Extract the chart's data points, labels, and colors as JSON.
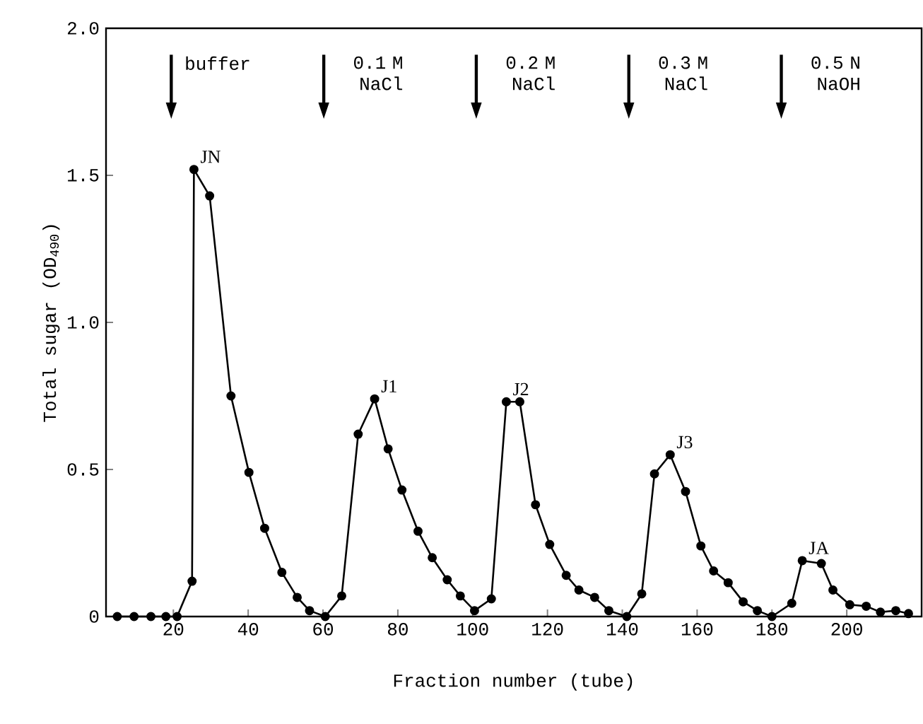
{
  "chart_data": {
    "type": "line",
    "xlabel": "Fraction number (tube)",
    "ylabel": "Total sugar (OD$_{490}$)",
    "x": [
      5,
      9.5,
      14,
      18,
      21,
      25,
      25.5,
      29.7,
      35.4,
      40.2,
      44.4,
      49,
      53.1,
      56.4,
      60.6,
      65,
      69.4,
      73.8,
      77.4,
      81.1,
      85.4,
      89.2,
      93.2,
      96.7,
      100.5,
      105,
      109,
      112.6,
      116.8,
      120.6,
      125,
      128.4,
      132.6,
      136.4,
      141.2,
      145.2,
      148.6,
      152.8,
      156.9,
      161,
      164.4,
      168.3,
      172.3,
      176.1,
      180,
      185.3,
      188.1,
      193.2,
      196.3,
      200.8,
      205.2,
      209,
      213.1,
      216.5
    ],
    "series": [
      {
        "color": "#000000",
        "values": [
          0,
          0,
          0,
          0,
          0,
          0.12,
          1.52,
          1.43,
          0.75,
          0.49,
          0.3,
          0.15,
          0.065,
          0.02,
          0,
          0.07,
          0.62,
          0.74,
          0.57,
          0.43,
          0.29,
          0.2,
          0.125,
          0.07,
          0.02,
          0.06,
          0.73,
          0.73,
          0.38,
          0.245,
          0.14,
          0.09,
          0.065,
          0.02,
          0,
          0.077,
          0.485,
          0.55,
          0.425,
          0.24,
          0.155,
          0.115,
          0.05,
          0.02,
          0,
          0.045,
          0.19,
          0.18,
          0.09,
          0.04,
          0.035,
          0.015,
          0.02,
          0.01
        ]
      }
    ],
    "marker": "circle",
    "line_style": "solid",
    "xlim": [
      2,
      220
    ],
    "xticks": [
      20,
      40,
      60,
      80,
      100,
      120,
      140,
      160,
      180,
      200
    ],
    "ylim": [
      0,
      2.0
    ],
    "yticks": [
      0,
      {
        "value": 0.5,
        "label": "0.5"
      },
      {
        "value": 1.0,
        "label": "1.0"
      },
      {
        "value": 1.5,
        "label": "1.5"
      },
      {
        "value": 2.0,
        "label": "2.0"
      }
    ],
    "annotations": [
      {
        "text": "JN",
        "x": 25.5,
        "y": 1.52
      },
      {
        "text": "J1",
        "x": 73.8,
        "y": 0.74
      },
      {
        "text": "J2",
        "x": 109,
        "y": 0.73
      },
      {
        "text": "J3",
        "x": 152.8,
        "y": 0.55
      },
      {
        "text": "JA",
        "x": 188.1,
        "y": 0.19
      },
      "buffer",
      "0.1 M NaCl",
      "0.2 M NaCl",
      "0.3 M NaCl",
      "0.5 N NaOH"
    ]
  }
}
